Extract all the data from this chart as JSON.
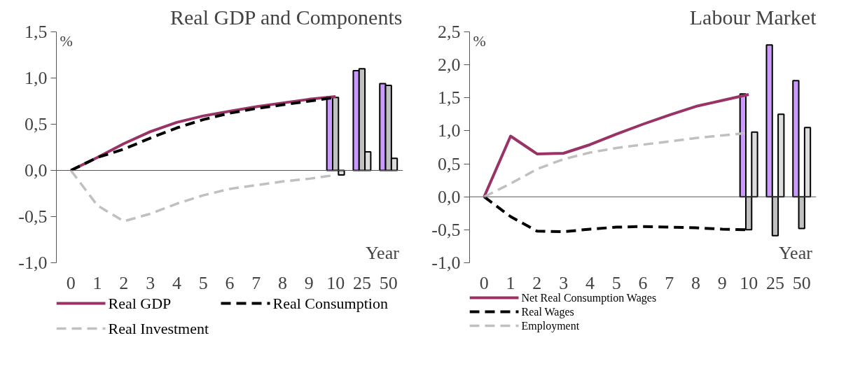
{
  "chart_data": [
    {
      "type": "line",
      "title": "Real GDP and Components",
      "xlabel": "Year",
      "ylabel": "%",
      "categories": [
        "0",
        "1",
        "2",
        "3",
        "4",
        "5",
        "6",
        "7",
        "8",
        "9",
        "10",
        "25",
        "50"
      ],
      "ylim": [
        -1.0,
        1.5
      ],
      "yticks": [
        {
          "value": -1.0,
          "label": "-1,0"
        },
        {
          "value": -0.5,
          "label": "-0,5"
        },
        {
          "value": 0.0,
          "label": "0,0"
        },
        {
          "value": 0.5,
          "label": "0,5"
        },
        {
          "value": 1.0,
          "label": "1,0"
        },
        {
          "value": 1.5,
          "label": "1,5"
        }
      ],
      "legend": "bottom",
      "line_style": "solid",
      "series": [
        {
          "name": "Real GDP",
          "color": "#993366",
          "values": [
            0,
            0.14,
            0.29,
            0.42,
            0.52,
            0.59,
            0.64,
            0.69,
            0.73,
            0.77,
            0.8,
            null,
            null
          ]
        },
        {
          "name": "Real Consumption",
          "color": "#000000",
          "line_style": "dashed",
          "values": [
            0,
            0.14,
            0.23,
            0.35,
            0.46,
            0.55,
            0.62,
            0.67,
            0.71,
            0.75,
            0.79,
            null,
            null
          ]
        },
        {
          "name": "Real Investment",
          "color": "#c0c0c0",
          "line_style": "dashed",
          "values": [
            0,
            -0.38,
            -0.55,
            -0.47,
            -0.36,
            -0.27,
            -0.2,
            -0.16,
            -0.12,
            -0.09,
            -0.05,
            null,
            null
          ]
        },
        {
          "type": "bar",
          "color": "#cc99ff",
          "values": [
            null,
            null,
            null,
            null,
            null,
            null,
            null,
            null,
            null,
            null,
            0.8,
            1.08,
            0.94
          ]
        },
        {
          "type": "bar",
          "color": "#c0c0c0",
          "values": [
            null,
            null,
            null,
            null,
            null,
            null,
            null,
            null,
            null,
            null,
            0.79,
            1.1,
            0.92
          ]
        },
        {
          "type": "bar",
          "color": "#dddddd",
          "values": [
            null,
            null,
            null,
            null,
            null,
            null,
            null,
            null,
            null,
            null,
            -0.05,
            0.2,
            0.13
          ]
        }
      ]
    },
    {
      "type": "line",
      "title": "Labour Market",
      "xlabel": "Year",
      "ylabel": "%",
      "categories": [
        "0",
        "1",
        "2",
        "3",
        "4",
        "5",
        "6",
        "7",
        "8",
        "9",
        "10",
        "25",
        "50"
      ],
      "ylim": [
        -1.0,
        2.5
      ],
      "yticks": [
        {
          "value": -1.0,
          "label": "-1,0"
        },
        {
          "value": -0.5,
          "label": "-0,5"
        },
        {
          "value": 0.0,
          "label": "0,0"
        },
        {
          "value": 0.5,
          "label": "0,5"
        },
        {
          "value": 1.0,
          "label": "1,0"
        },
        {
          "value": 1.5,
          "label": "1,5"
        },
        {
          "value": 2.0,
          "label": "2,0"
        },
        {
          "value": 2.5,
          "label": "2,5"
        }
      ],
      "legend": "bottom",
      "line_style": "solid",
      "series": [
        {
          "name": "Net Real Consumption Wages",
          "color": "#993366",
          "values": [
            0,
            0.92,
            0.65,
            0.66,
            0.79,
            0.95,
            1.1,
            1.24,
            1.37,
            1.46,
            1.55,
            null,
            null
          ]
        },
        {
          "name": "Real Wages",
          "color": "#000000",
          "line_style": "dashed",
          "values": [
            0,
            -0.3,
            -0.52,
            -0.53,
            -0.49,
            -0.46,
            -0.45,
            -0.46,
            -0.47,
            -0.49,
            -0.5,
            null,
            null
          ]
        },
        {
          "name": "Employment",
          "color": "#c0c0c0",
          "line_style": "dashed",
          "values": [
            0,
            0.2,
            0.42,
            0.57,
            0.67,
            0.74,
            0.79,
            0.84,
            0.89,
            0.93,
            0.97,
            null,
            null
          ]
        },
        {
          "type": "bar",
          "color": "#cc99ff",
          "values": [
            null,
            null,
            null,
            null,
            null,
            null,
            null,
            null,
            null,
            null,
            1.56,
            2.3,
            1.76
          ]
        },
        {
          "type": "bar",
          "color": "#c0c0c0",
          "values": [
            null,
            null,
            null,
            null,
            null,
            null,
            null,
            null,
            null,
            null,
            -0.5,
            -0.59,
            -0.48
          ]
        },
        {
          "type": "bar",
          "color": "#dddddd",
          "values": [
            null,
            null,
            null,
            null,
            null,
            null,
            null,
            null,
            null,
            null,
            0.98,
            1.25,
            1.05
          ]
        }
      ]
    }
  ]
}
